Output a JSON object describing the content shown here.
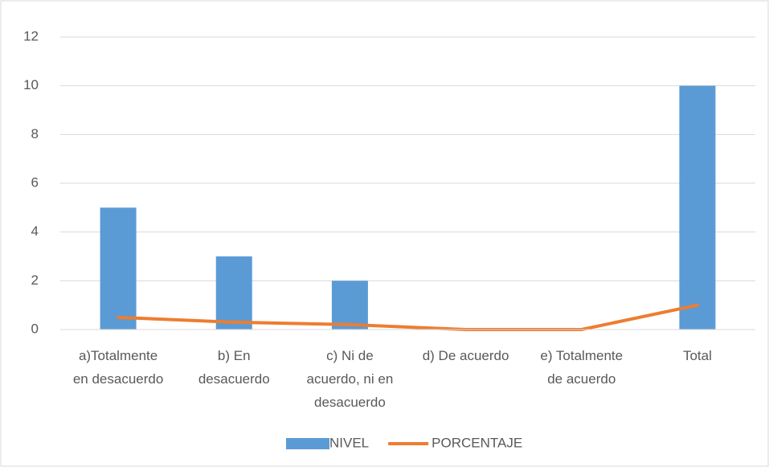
{
  "chart_data": {
    "type": "bar",
    "categories": [
      [
        "a)Totalmente",
        "en desacuerdo"
      ],
      [
        "b) En",
        "desacuerdo"
      ],
      [
        "c) Ni de",
        "acuerdo, ni en",
        "desacuerdo"
      ],
      [
        "d) De acuerdo"
      ],
      [
        "e) Totalmente",
        "de acuerdo"
      ],
      [
        "Total"
      ]
    ],
    "series": [
      {
        "name": "NIVEL",
        "type": "bar",
        "color": "#5b9bd5",
        "values": [
          5,
          3,
          2,
          0,
          0,
          10
        ]
      },
      {
        "name": "PORCENTAJE",
        "type": "line",
        "color": "#ed7d31",
        "values": [
          0.5,
          0.3,
          0.2,
          0,
          0,
          1
        ]
      }
    ],
    "ylim": [
      0,
      12
    ],
    "yticks": [
      0,
      2,
      4,
      6,
      8,
      10,
      12
    ],
    "grid": true,
    "legend": "bottom"
  }
}
